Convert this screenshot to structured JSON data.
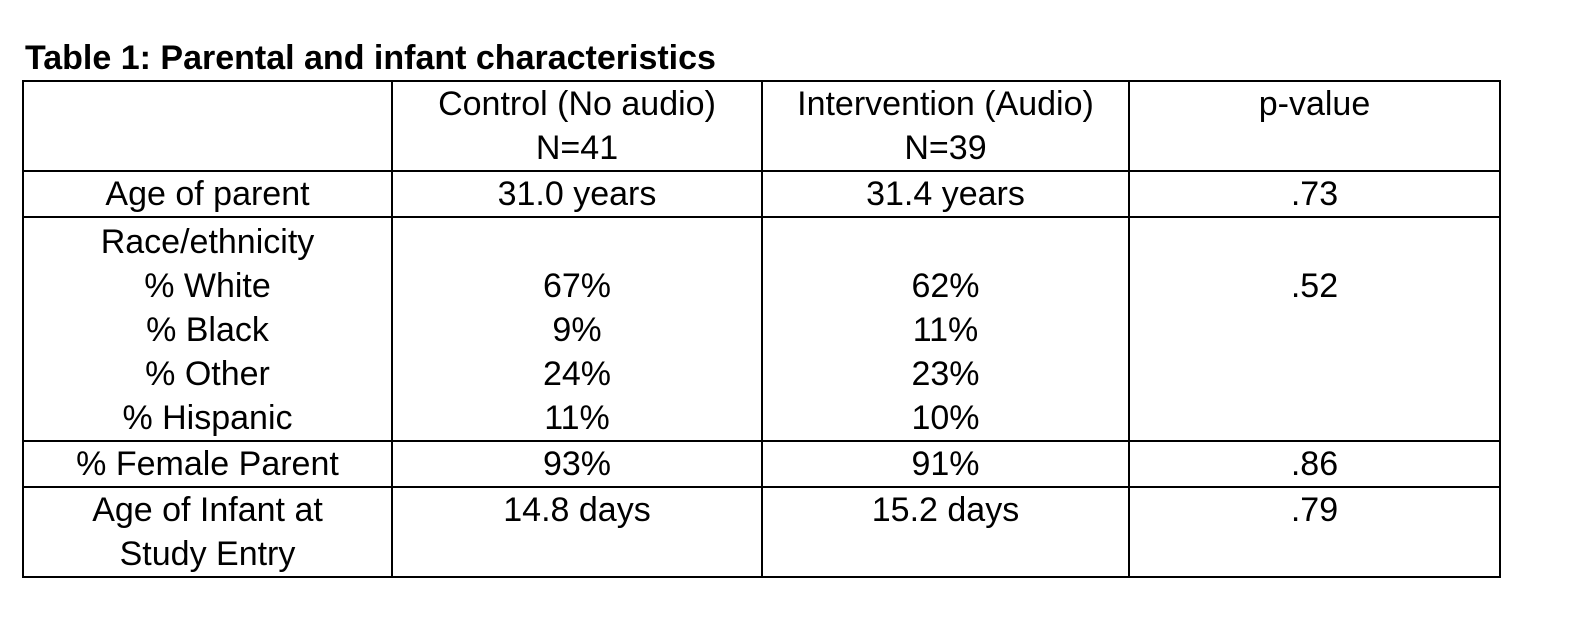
{
  "title": "Table 1: Parental and infant characteristics",
  "table": {
    "columns": [
      {
        "label": "Control (No audio)",
        "n": "N=41"
      },
      {
        "label": "Intervention (Audio)",
        "n": "N=39"
      },
      {
        "label": "p-value"
      }
    ],
    "age_parent": {
      "label": "Age of parent",
      "control": "31.0 years",
      "intervention": "31.4 years",
      "p": ".73"
    },
    "race": {
      "label": "Race/ethnicity",
      "p": ".52",
      "rows": [
        {
          "label": "% White",
          "control": "67%",
          "intervention": "62%"
        },
        {
          "label": "% Black",
          "control": "9%",
          "intervention": "11%"
        },
        {
          "label": "% Other",
          "control": "24%",
          "intervention": "23%"
        },
        {
          "label": "% Hispanic",
          "control": "11%",
          "intervention": "10%"
        }
      ]
    },
    "female": {
      "label": "% Female Parent",
      "control": "93%",
      "intervention": "91%",
      "p": ".86"
    },
    "infant_age": {
      "label": [
        "Age of Infant at",
        "Study Entry"
      ],
      "control": "14.8 days",
      "intervention": "15.2 days",
      "p": ".79"
    }
  }
}
